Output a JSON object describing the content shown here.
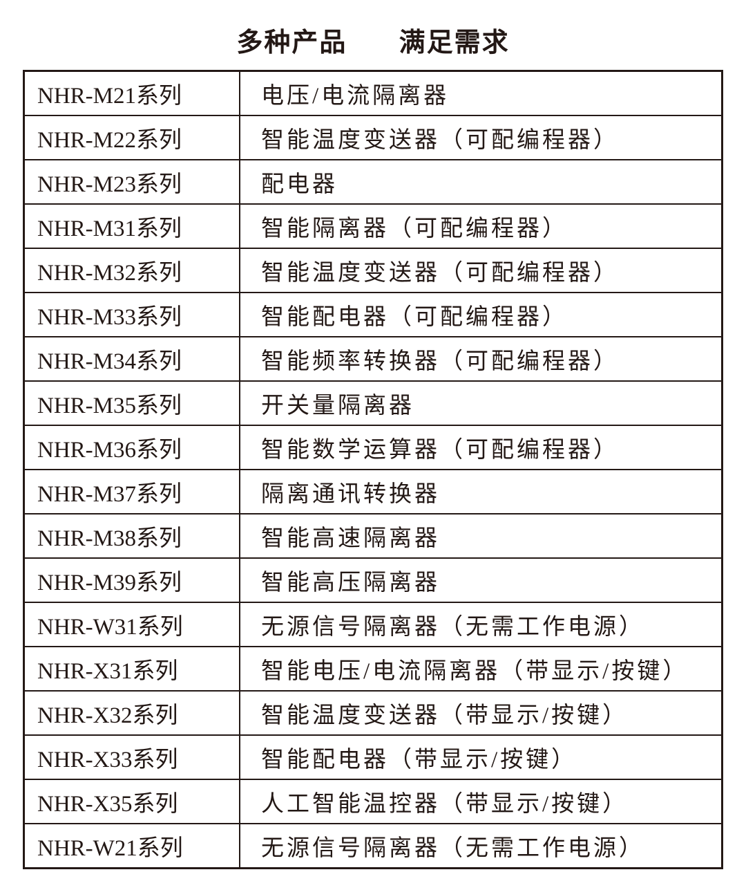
{
  "title": {
    "left": "多种产品",
    "right": "满足需求"
  },
  "rows": [
    {
      "model": "NHR-M21系列",
      "desc": "电压/电流隔离器"
    },
    {
      "model": "NHR-M22系列",
      "desc": "智能温度变送器（可配编程器）"
    },
    {
      "model": "NHR-M23系列",
      "desc": "配电器"
    },
    {
      "model": "NHR-M31系列",
      "desc": "智能隔离器（可配编程器）"
    },
    {
      "model": "NHR-M32系列",
      "desc": "智能温度变送器（可配编程器）"
    },
    {
      "model": "NHR-M33系列",
      "desc": "智能配电器（可配编程器）"
    },
    {
      "model": "NHR-M34系列",
      "desc": "智能频率转换器（可配编程器）"
    },
    {
      "model": "NHR-M35系列",
      "desc": "开关量隔离器"
    },
    {
      "model": "NHR-M36系列",
      "desc": "智能数学运算器（可配编程器）"
    },
    {
      "model": "NHR-M37系列",
      "desc": "隔离通讯转换器"
    },
    {
      "model": "NHR-M38系列",
      "desc": "智能高速隔离器"
    },
    {
      "model": "NHR-M39系列",
      "desc": "智能高压隔离器"
    },
    {
      "model": "NHR-W31系列",
      "desc": "无源信号隔离器（无需工作电源）"
    },
    {
      "model": "NHR-X31系列",
      "desc": "智能电压/电流隔离器（带显示/按键）"
    },
    {
      "model": "NHR-X32系列",
      "desc": "智能温度变送器（带显示/按键）"
    },
    {
      "model": "NHR-X33系列",
      "desc": "智能配电器（带显示/按键）"
    },
    {
      "model": "NHR-X35系列",
      "desc": "人工智能温控器（带显示/按键）"
    },
    {
      "model": "NHR-W21系列",
      "desc": "无源信号隔离器（无需工作电源）"
    }
  ]
}
